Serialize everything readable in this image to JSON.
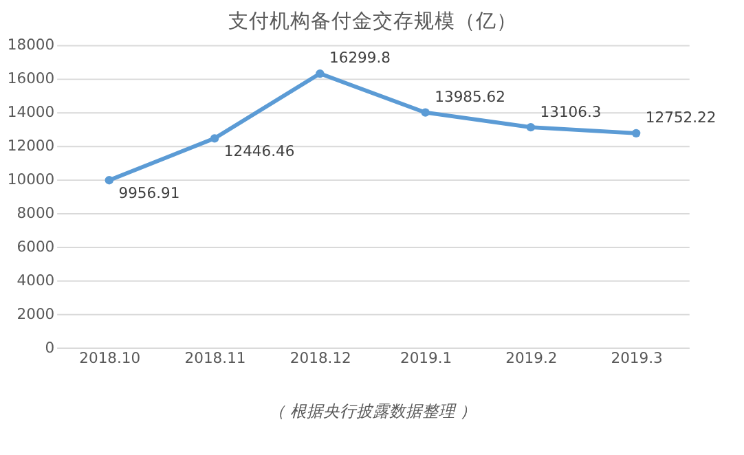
{
  "chart_data": {
    "type": "line",
    "title": "支付机构备付金交存规模（亿）",
    "categories": [
      "2018.10",
      "2018.11",
      "2018.12",
      "2019.1",
      "2019.2",
      "2019.3"
    ],
    "series": [
      {
        "color": "#5b9bd5",
        "values": [
          9956.91,
          12446.46,
          16299.8,
          13985.62,
          13106.3,
          12752.22
        ]
      }
    ],
    "ylim": [
      0,
      18000
    ],
    "yticks": [
      0,
      2000,
      4000,
      6000,
      8000,
      10000,
      12000,
      14000,
      16000,
      18000
    ],
    "grid": "y",
    "marker": "circle",
    "line_style": "solid",
    "data_labels": true,
    "legend": false,
    "annotations": [
      "（ 根据央行披露数据整理 ）"
    ]
  }
}
